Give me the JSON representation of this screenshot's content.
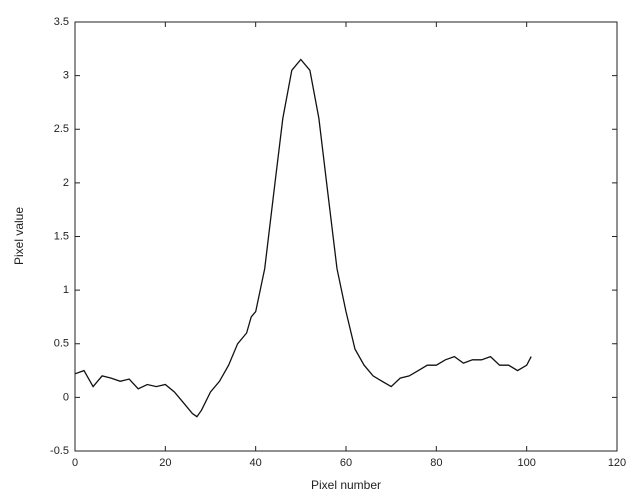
{
  "chart_data": {
    "type": "line",
    "xlabel": "Pixel number",
    "ylabel": "Pixel value",
    "x": [
      0,
      2,
      4,
      6,
      8,
      10,
      12,
      14,
      16,
      18,
      20,
      22,
      24,
      26,
      27,
      28,
      30,
      32,
      34,
      36,
      38,
      39,
      40,
      42,
      44,
      46,
      48,
      50,
      52,
      54,
      56,
      58,
      60,
      62,
      64,
      66,
      68,
      70,
      72,
      74,
      76,
      78,
      80,
      82,
      84,
      86,
      88,
      90,
      92,
      94,
      96,
      98,
      100,
      101
    ],
    "series": [
      {
        "color": "#111111",
        "values": [
          0.22,
          0.25,
          0.1,
          0.2,
          0.18,
          0.15,
          0.17,
          0.08,
          0.12,
          0.1,
          0.12,
          0.05,
          -0.05,
          -0.15,
          -0.18,
          -0.12,
          0.05,
          0.15,
          0.3,
          0.5,
          0.6,
          0.75,
          0.8,
          1.2,
          1.9,
          2.6,
          3.05,
          3.15,
          3.05,
          2.6,
          1.9,
          1.2,
          0.8,
          0.45,
          0.3,
          0.2,
          0.15,
          0.1,
          0.18,
          0.2,
          0.25,
          0.3,
          0.3,
          0.35,
          0.38,
          0.32,
          0.35,
          0.35,
          0.38,
          0.3,
          0.3,
          0.25,
          0.3,
          0.38
        ]
      }
    ],
    "xlim": [
      0,
      120
    ],
    "xticks": [
      0,
      20,
      40,
      60,
      80,
      100,
      120
    ],
    "ylim": [
      -0.5,
      3.5
    ],
    "yticks": [
      -0.5,
      0,
      0.5,
      1,
      1.5,
      2,
      2.5,
      3,
      3.5
    ]
  }
}
